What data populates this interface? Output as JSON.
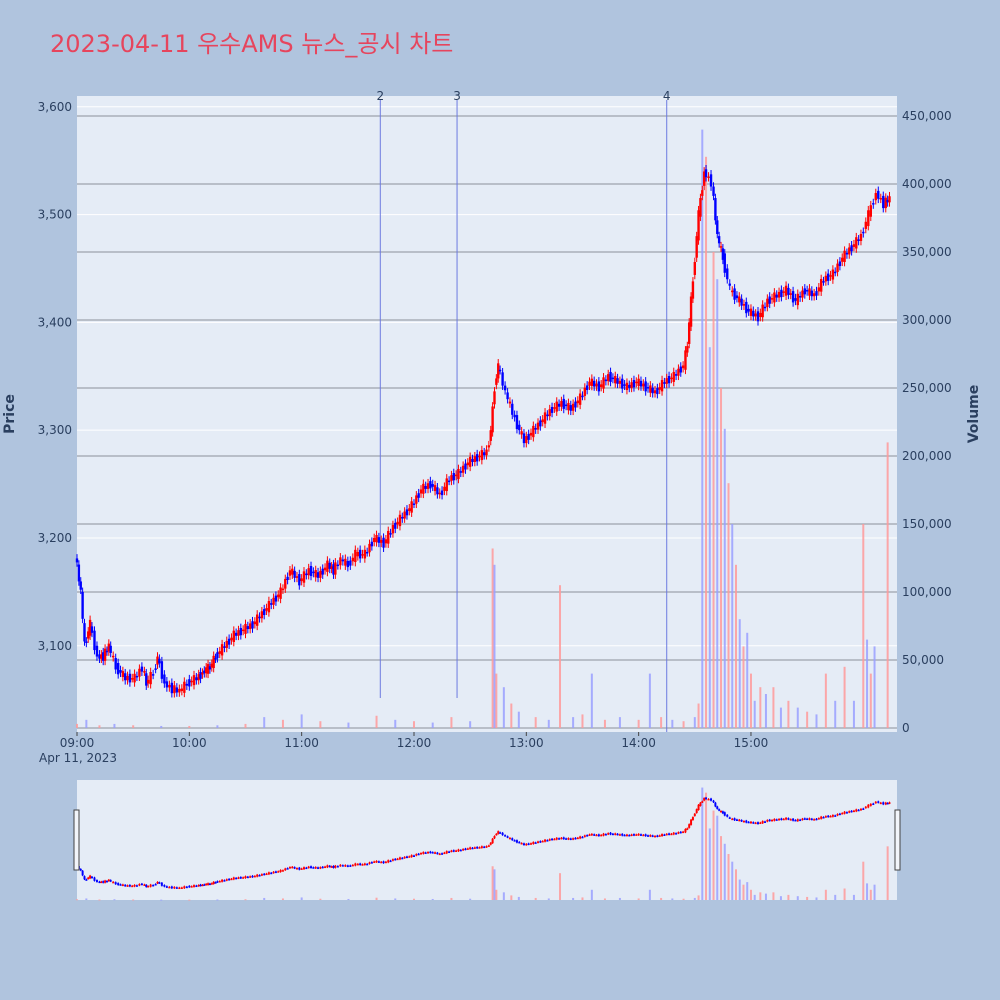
{
  "chart_data": {
    "type": "candlestick",
    "title": "2023-04-11 우수AMS 뉴스_공시 차트",
    "ylabel": "Price",
    "y2label": "Volume",
    "date_label": "Apr 11, 2023",
    "price_ylim": [
      3020,
      3610
    ],
    "volume_ylim": [
      0,
      450000
    ],
    "price_ticks": [
      "3,100",
      "3,200",
      "3,300",
      "3,400",
      "3,500",
      "3,600"
    ],
    "price_tick_values": [
      3100,
      3200,
      3300,
      3400,
      3500,
      3600
    ],
    "volume_ticks": [
      "0",
      "50,000",
      "100,000",
      "150,000",
      "200,000",
      "250,000",
      "300,000",
      "350,000",
      "400,000",
      "450,000"
    ],
    "volume_tick_values": [
      0,
      50000,
      100000,
      150000,
      200000,
      250000,
      300000,
      350000,
      400000,
      450000
    ],
    "x_ticks": [
      "09:00",
      "10:00",
      "11:00",
      "12:00",
      "13:00",
      "14:00",
      "15:00"
    ],
    "x_tick_minutes": [
      0,
      60,
      120,
      180,
      240,
      300,
      360
    ],
    "news_markers": [
      {
        "label": "2",
        "time": "11:42"
      },
      {
        "label": "3",
        "time": "12:23"
      },
      {
        "label": "4",
        "time": "14:15"
      }
    ],
    "price_path": [
      [
        0,
        3185
      ],
      [
        3,
        3150
      ],
      [
        5,
        3100
      ],
      [
        8,
        3120
      ],
      [
        12,
        3090
      ],
      [
        15,
        3090
      ],
      [
        18,
        3100
      ],
      [
        22,
        3080
      ],
      [
        27,
        3070
      ],
      [
        32,
        3070
      ],
      [
        36,
        3080
      ],
      [
        38,
        3065
      ],
      [
        42,
        3075
      ],
      [
        44,
        3090
      ],
      [
        48,
        3065
      ],
      [
        52,
        3060
      ],
      [
        56,
        3058
      ],
      [
        60,
        3065
      ],
      [
        65,
        3070
      ],
      [
        68,
        3075
      ],
      [
        70,
        3078
      ],
      [
        72,
        3080
      ],
      [
        75,
        3090
      ],
      [
        80,
        3100
      ],
      [
        85,
        3110
      ],
      [
        90,
        3115
      ],
      [
        95,
        3120
      ],
      [
        100,
        3130
      ],
      [
        105,
        3140
      ],
      [
        110,
        3150
      ],
      [
        115,
        3170
      ],
      [
        120,
        3160
      ],
      [
        125,
        3170
      ],
      [
        130,
        3165
      ],
      [
        135,
        3175
      ],
      [
        138,
        3170
      ],
      [
        142,
        3180
      ],
      [
        146,
        3175
      ],
      [
        150,
        3185
      ],
      [
        155,
        3185
      ],
      [
        160,
        3200
      ],
      [
        165,
        3195
      ],
      [
        170,
        3210
      ],
      [
        175,
        3220
      ],
      [
        180,
        3230
      ],
      [
        185,
        3245
      ],
      [
        190,
        3250
      ],
      [
        195,
        3240
      ],
      [
        200,
        3255
      ],
      [
        205,
        3260
      ],
      [
        210,
        3270
      ],
      [
        215,
        3275
      ],
      [
        220,
        3280
      ],
      [
        222,
        3300
      ],
      [
        224,
        3340
      ],
      [
        226,
        3360
      ],
      [
        230,
        3335
      ],
      [
        235,
        3310
      ],
      [
        240,
        3290
      ],
      [
        245,
        3300
      ],
      [
        250,
        3310
      ],
      [
        255,
        3320
      ],
      [
        260,
        3325
      ],
      [
        265,
        3320
      ],
      [
        270,
        3330
      ],
      [
        275,
        3345
      ],
      [
        280,
        3340
      ],
      [
        285,
        3350
      ],
      [
        290,
        3345
      ],
      [
        295,
        3340
      ],
      [
        300,
        3345
      ],
      [
        305,
        3340
      ],
      [
        310,
        3335
      ],
      [
        315,
        3345
      ],
      [
        320,
        3350
      ],
      [
        325,
        3360
      ],
      [
        327,
        3380
      ],
      [
        330,
        3440
      ],
      [
        333,
        3500
      ],
      [
        336,
        3540
      ],
      [
        340,
        3530
      ],
      [
        343,
        3480
      ],
      [
        346,
        3460
      ],
      [
        350,
        3430
      ],
      [
        355,
        3420
      ],
      [
        360,
        3410
      ],
      [
        365,
        3405
      ],
      [
        370,
        3420
      ],
      [
        375,
        3425
      ],
      [
        380,
        3430
      ],
      [
        385,
        3420
      ],
      [
        390,
        3430
      ],
      [
        395,
        3425
      ],
      [
        400,
        3440
      ],
      [
        405,
        3445
      ],
      [
        410,
        3460
      ],
      [
        415,
        3470
      ],
      [
        420,
        3480
      ],
      [
        424,
        3500
      ],
      [
        428,
        3520
      ],
      [
        432,
        3510
      ],
      [
        435,
        3515
      ]
    ],
    "volume_bars": [
      [
        0,
        3000
      ],
      [
        5,
        6000
      ],
      [
        12,
        2000
      ],
      [
        20,
        3000
      ],
      [
        30,
        2000
      ],
      [
        45,
        1500
      ],
      [
        60,
        1500
      ],
      [
        75,
        2000
      ],
      [
        90,
        3000
      ],
      [
        100,
        8000
      ],
      [
        110,
        6000
      ],
      [
        120,
        10000
      ],
      [
        130,
        5000
      ],
      [
        145,
        4000
      ],
      [
        160,
        9000
      ],
      [
        170,
        6000
      ],
      [
        180,
        5000
      ],
      [
        190,
        4000
      ],
      [
        200,
        8000
      ],
      [
        210,
        5000
      ],
      [
        222,
        132000
      ],
      [
        223,
        120000
      ],
      [
        224,
        40000
      ],
      [
        228,
        30000
      ],
      [
        232,
        18000
      ],
      [
        236,
        12000
      ],
      [
        245,
        8000
      ],
      [
        252,
        6000
      ],
      [
        258,
        105000
      ],
      [
        265,
        8000
      ],
      [
        270,
        10000
      ],
      [
        275,
        40000
      ],
      [
        282,
        6000
      ],
      [
        290,
        8000
      ],
      [
        300,
        6000
      ],
      [
        306,
        40000
      ],
      [
        312,
        8000
      ],
      [
        318,
        6000
      ],
      [
        324,
        5000
      ],
      [
        330,
        8000
      ],
      [
        332,
        18000
      ],
      [
        334,
        440000
      ],
      [
        336,
        420000
      ],
      [
        338,
        280000
      ],
      [
        340,
        350000
      ],
      [
        342,
        330000
      ],
      [
        344,
        250000
      ],
      [
        346,
        220000
      ],
      [
        348,
        180000
      ],
      [
        350,
        150000
      ],
      [
        352,
        120000
      ],
      [
        354,
        80000
      ],
      [
        356,
        60000
      ],
      [
        358,
        70000
      ],
      [
        360,
        40000
      ],
      [
        362,
        20000
      ],
      [
        365,
        30000
      ],
      [
        368,
        25000
      ],
      [
        372,
        30000
      ],
      [
        376,
        15000
      ],
      [
        380,
        20000
      ],
      [
        385,
        15000
      ],
      [
        390,
        12000
      ],
      [
        395,
        10000
      ],
      [
        400,
        40000
      ],
      [
        405,
        20000
      ],
      [
        410,
        45000
      ],
      [
        415,
        20000
      ],
      [
        420,
        150000
      ],
      [
        422,
        65000
      ],
      [
        424,
        40000
      ],
      [
        426,
        60000
      ],
      [
        433,
        210000
      ]
    ],
    "colors": {
      "up": "#ff0000",
      "down": "#0000ff",
      "title": "#e6455d"
    }
  }
}
